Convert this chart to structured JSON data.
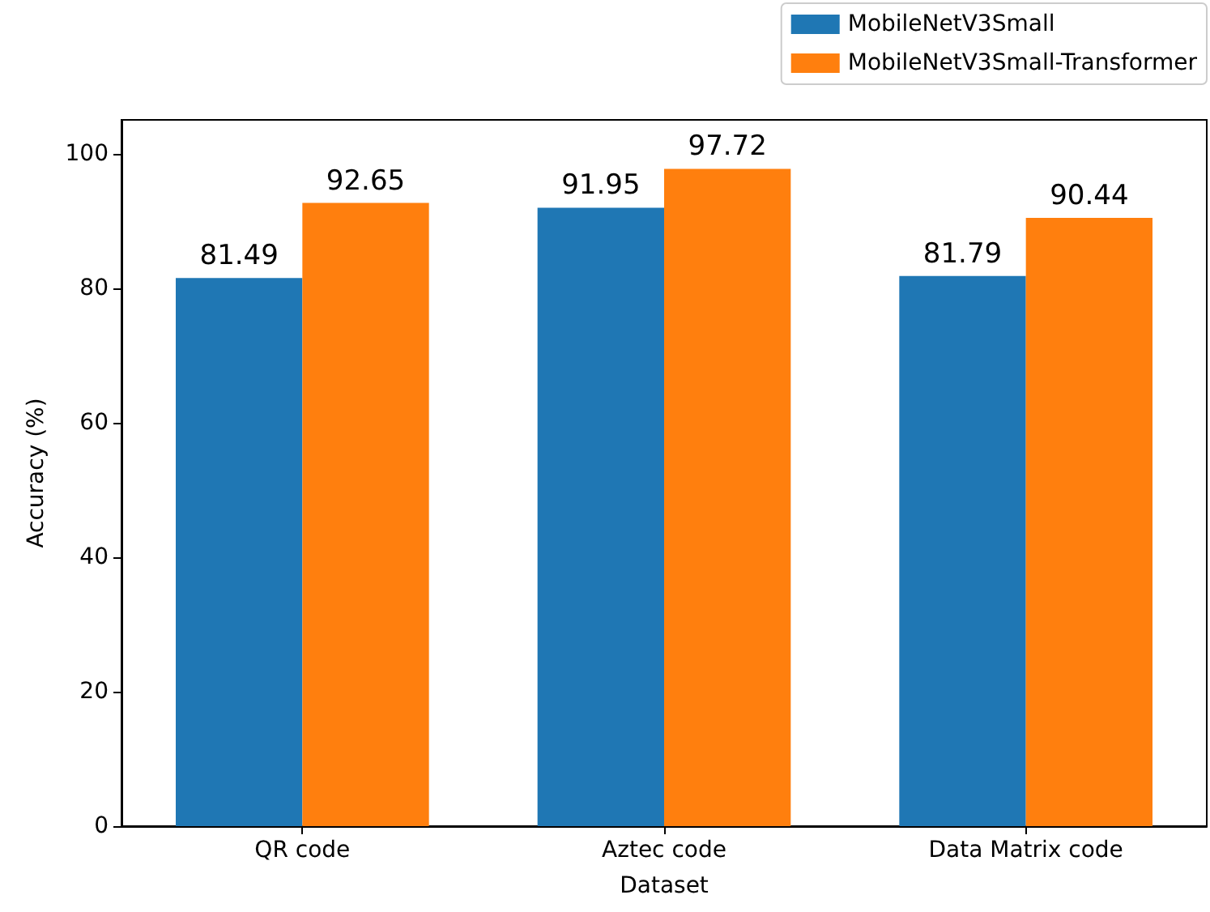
{
  "chart_data": {
    "type": "bar",
    "xlabel": "Dataset",
    "ylabel": "Accuracy (%)",
    "categories": [
      "QR code",
      "Aztec code",
      "Data Matrix code"
    ],
    "series": [
      {
        "name": "MobileNetV3Small",
        "color": "#1f77b4",
        "values": [
          81.49,
          91.95,
          81.79
        ]
      },
      {
        "name": "MobileNetV3Small-Transformer",
        "color": "#ff7f0e",
        "values": [
          92.65,
          97.72,
          90.44
        ]
      }
    ],
    "ylim": [
      0,
      105
    ],
    "yticks": [
      0,
      20,
      40,
      60,
      80,
      100
    ],
    "grid": false,
    "legend": "top right",
    "data_labels": true
  }
}
